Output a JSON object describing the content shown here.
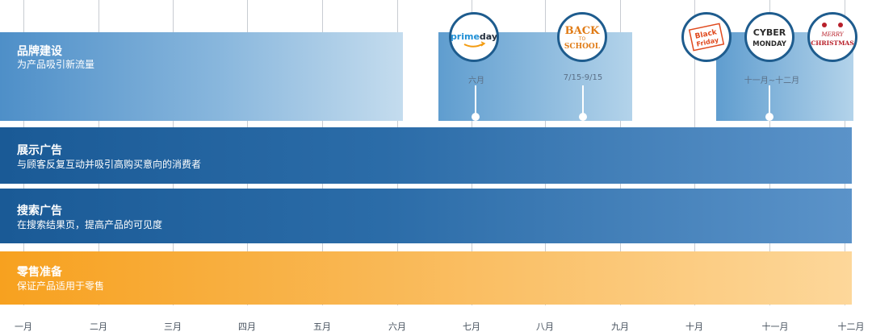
{
  "bars": [
    {
      "id": "brand",
      "title": "品牌建设",
      "subtitle": "为产品吸引新流量"
    },
    {
      "id": "display",
      "title": "展示广告",
      "subtitle": "与顾客反复互动并吸引高购买意向的消费者"
    },
    {
      "id": "search",
      "title": "搜索广告",
      "subtitle": "在搜索结果页，提高产品的可见度"
    },
    {
      "id": "retail",
      "title": "零售准备",
      "subtitle": "保证产品适用于零售"
    }
  ],
  "months": [
    "一月",
    "二月",
    "三月",
    "四月",
    "五月",
    "六月",
    "七月",
    "八月",
    "九月",
    "十月",
    "十一月",
    "十二月"
  ],
  "events": [
    {
      "id": "prime",
      "date_label": "六月"
    },
    {
      "id": "school",
      "date_label": "7/15-9/15"
    },
    {
      "id": "holiday",
      "date_label": "十一月~十二月"
    }
  ],
  "badges": {
    "prime": {
      "line1": "prime",
      "line2": "day"
    },
    "school": {
      "line1": "BACK",
      "line2": "TO",
      "line3": "SCHOOL"
    },
    "black_friday": {
      "line1": "Black",
      "line2": "Friday"
    },
    "cyber": {
      "line1": "CYBER",
      "line2": "MONDAY"
    },
    "christmas": {
      "line1": "MERRY",
      "line2": "CHRISTMAS"
    }
  },
  "colors": {
    "brand_gradient": [
      "#4e8fc8",
      "#c4dcee"
    ],
    "ad_gradient": [
      "#1a5a96",
      "#5b93c9"
    ],
    "retail_gradient": [
      "#f7a11f",
      "#fdd79a"
    ],
    "badge_border": "#1e5c8e",
    "prime_blue": "#1f8fd5",
    "school_orange": "#e07b16",
    "black_friday_red": "#e04a1e",
    "christmas_red": "#b8202a",
    "cyber_dark": "#2b2b2b"
  }
}
